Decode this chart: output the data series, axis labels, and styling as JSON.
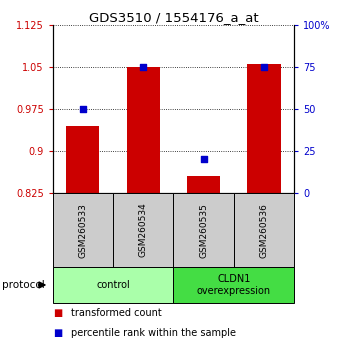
{
  "title": "GDS3510 / 1554176_a_at",
  "samples": [
    "GSM260533",
    "GSM260534",
    "GSM260535",
    "GSM260536"
  ],
  "bar_values": [
    0.945,
    1.05,
    0.855,
    1.055
  ],
  "percentile_values": [
    50,
    75,
    20,
    75
  ],
  "ylim_left": [
    0.825,
    1.125
  ],
  "ylim_right": [
    0,
    100
  ],
  "yticks_left": [
    0.825,
    0.9,
    0.975,
    1.05,
    1.125
  ],
  "yticks_right": [
    0,
    25,
    50,
    75,
    100
  ],
  "ytick_labels_left": [
    "0.825",
    "0.9",
    "0.975",
    "1.05",
    "1.125"
  ],
  "ytick_labels_right": [
    "0",
    "25",
    "50",
    "75",
    "100%"
  ],
  "bar_color": "#cc0000",
  "dot_color": "#0000cc",
  "groups": [
    {
      "label": "control",
      "samples": [
        0,
        1
      ],
      "color": "#aaffaa"
    },
    {
      "label": "CLDN1\noverexpression",
      "samples": [
        2,
        3
      ],
      "color": "#44dd44"
    }
  ],
  "protocol_label": "protocol",
  "legend_bar_label": "transformed count",
  "legend_dot_label": "percentile rank within the sample",
  "tick_label_color_left": "#cc0000",
  "tick_label_color_right": "#0000cc",
  "sample_box_color": "#cccccc"
}
